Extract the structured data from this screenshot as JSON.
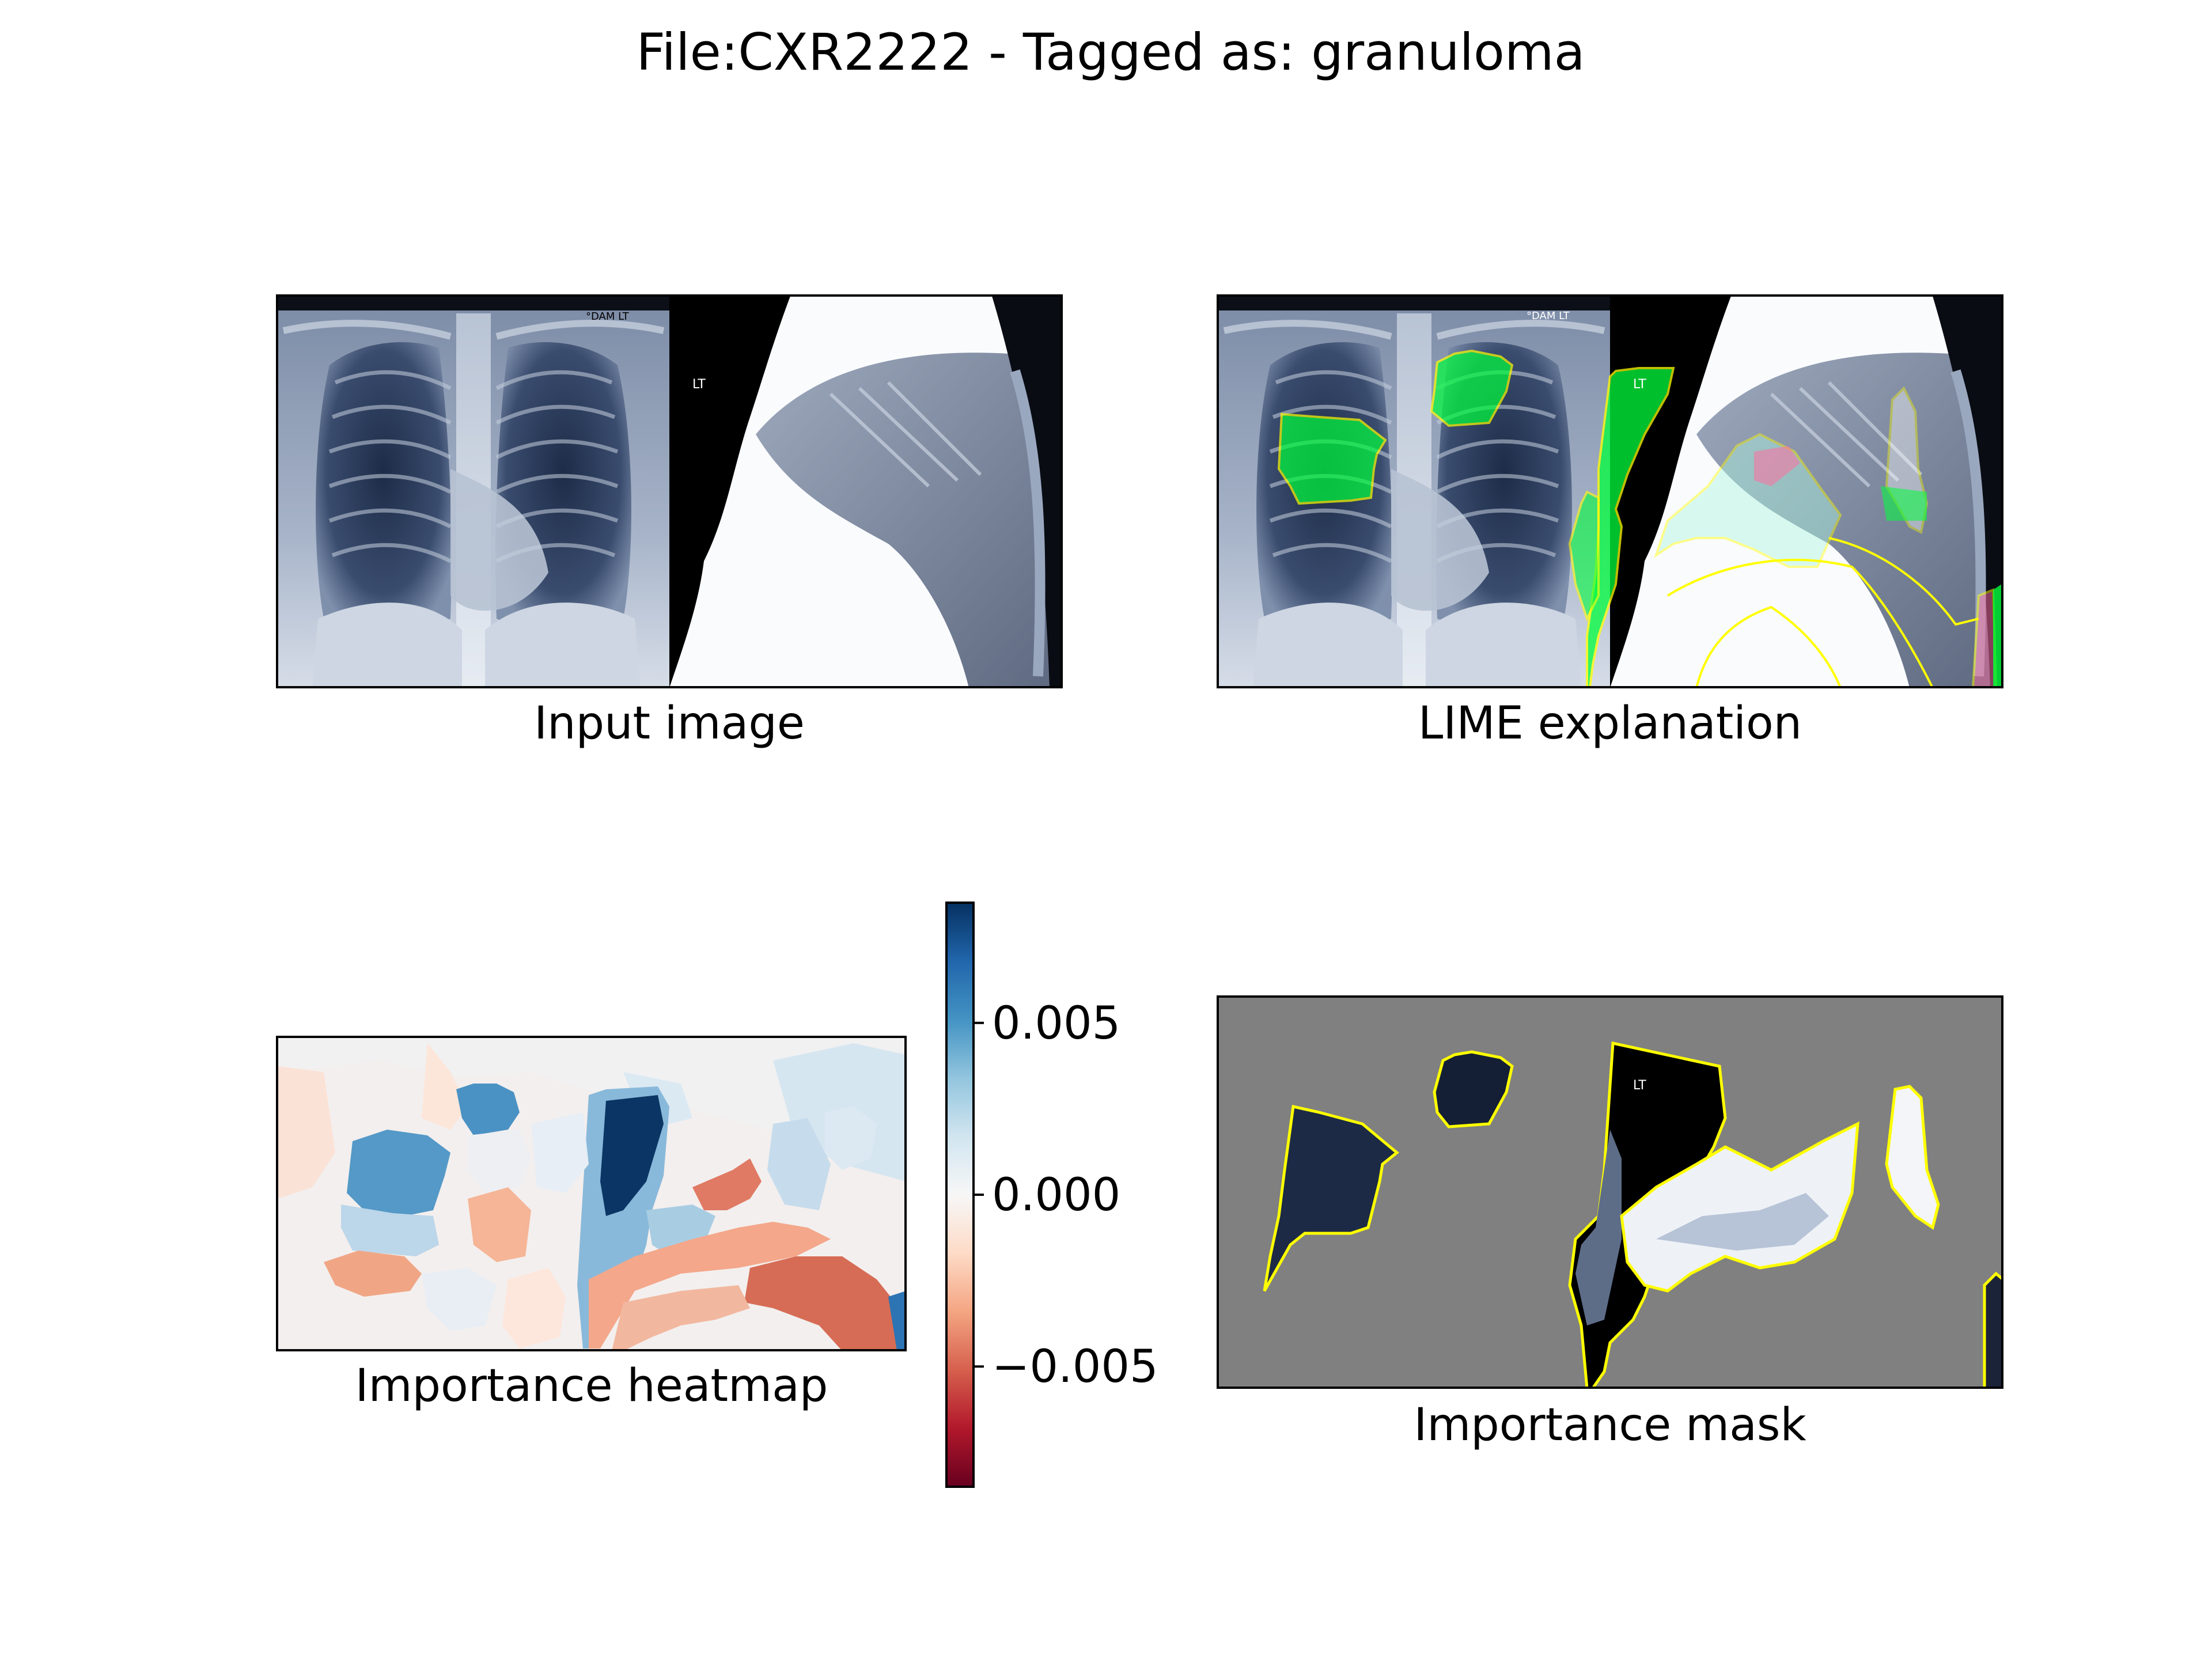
{
  "figure": {
    "title": "File:CXR2222 - Tagged as: granuloma"
  },
  "panels": {
    "input": {
      "caption": "Input image",
      "frontal_marker": "°DAM  LT",
      "lateral_marker": "LT"
    },
    "lime": {
      "caption": "LIME explanation",
      "frontal_marker": "°DAM  LT",
      "lateral_marker": "LT"
    },
    "heatmap": {
      "caption": "Importance heatmap"
    },
    "mask": {
      "caption": "Importance mask",
      "lateral_marker": "LT"
    }
  },
  "colorbar": {
    "colormap": "RdBu",
    "range": [
      -0.0085,
      0.0085
    ],
    "tick_values": [
      0.005,
      0.0,
      -0.005
    ],
    "tick_labels": [
      "0.005",
      "0.000",
      "−0.005"
    ]
  },
  "colors": {
    "lime_positive": "#00ff3c",
    "lime_negative": "#ff6fa0",
    "boundary": "#ffff00",
    "mask_background": "#808080"
  }
}
